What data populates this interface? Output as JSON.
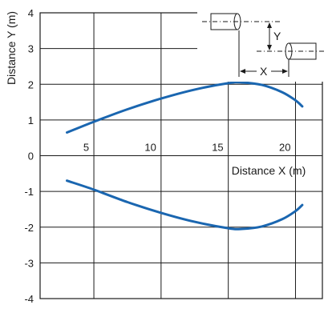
{
  "chart_data": {
    "type": "line",
    "ylabel": "Distance Y (m)",
    "xlabel": "Distance X (m)",
    "xlim": [
      1,
      22
    ],
    "ylim": [
      -4,
      4
    ],
    "x_ticks": [
      "5",
      "10",
      "15",
      "20"
    ],
    "y_ticks": [
      "4",
      "3",
      "2",
      "1",
      "0",
      "-1",
      "-2",
      "-3",
      "-4"
    ],
    "grid": true,
    "series": [
      {
        "color": "#1a66b0",
        "x": [
          3.0,
          5.0,
          7.5,
          10.0,
          12.5,
          15.0,
          16.0,
          17.5,
          19.0,
          20.0,
          20.5
        ],
        "y": [
          0.65,
          0.95,
          1.3,
          1.6,
          1.85,
          2.03,
          2.05,
          1.98,
          1.78,
          1.55,
          1.38
        ]
      },
      {
        "color": "#1a66b0",
        "x": [
          3.0,
          5.0,
          7.5,
          10.0,
          12.5,
          15.0,
          16.0,
          17.5,
          19.0,
          20.0,
          20.5
        ],
        "y": [
          -0.7,
          -0.95,
          -1.3,
          -1.6,
          -1.85,
          -2.03,
          -2.05,
          -1.98,
          -1.78,
          -1.55,
          -1.38
        ]
      }
    ],
    "inset_diagram": {
      "labels": {
        "y": "Y",
        "x": "X"
      }
    }
  }
}
